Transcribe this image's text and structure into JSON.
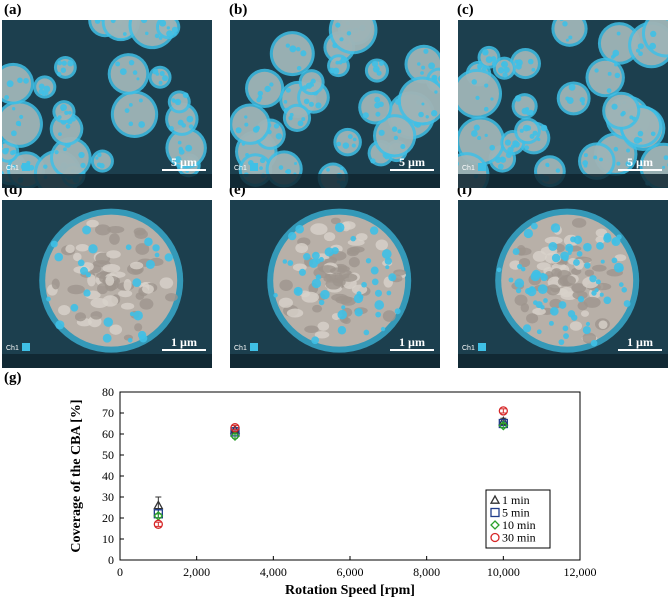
{
  "panels": {
    "a": {
      "label": "(a)",
      "scale": "5 µm",
      "ch": "Ch1"
    },
    "b": {
      "label": "(b)",
      "scale": "5 µm",
      "ch": "Ch1"
    },
    "c": {
      "label": "(c)",
      "scale": "5 µm",
      "ch": "Ch1"
    },
    "d": {
      "label": "(d)",
      "scale": "1 µm",
      "ch": "Ch1"
    },
    "e": {
      "label": "(e)",
      "scale": "1 µm",
      "ch": "Ch1"
    },
    "f": {
      "label": "(f)",
      "scale": "1 µm",
      "ch": "Ch1"
    },
    "g": {
      "label": "(g)"
    }
  },
  "colors": {
    "background_dark": "#1c3f4e",
    "cba_cyan": "#3fc0e6",
    "particle_gray": "#b8b0a8"
  },
  "chart_data": {
    "type": "scatter",
    "xlabel": "Rotation Speed [rpm]",
    "ylabel": "Coverage of the CBA [%]",
    "xlim": [
      0,
      12000
    ],
    "ylim": [
      0,
      80
    ],
    "xticks": [
      "0",
      "2,000",
      "4,000",
      "6,000",
      "8,000",
      "10,000",
      "12,000"
    ],
    "yticks": [
      "0",
      "10",
      "20",
      "30",
      "40",
      "50",
      "60",
      "70",
      "80"
    ],
    "grid": false,
    "legend_position": "bottom-right",
    "series": [
      {
        "name": "1 min",
        "marker": "triangle",
        "color": "#333333",
        "x": [
          1000,
          3000,
          10000
        ],
        "y": [
          26,
          62,
          66
        ],
        "err": [
          4,
          1,
          1.5
        ]
      },
      {
        "name": "5 min",
        "marker": "square",
        "color": "#1f3c8a",
        "x": [
          1000,
          3000,
          10000
        ],
        "y": [
          22,
          61,
          65
        ],
        "err": [
          2,
          1,
          1
        ]
      },
      {
        "name": "10 min",
        "marker": "diamond",
        "color": "#2ca02c",
        "x": [
          1000,
          3000,
          10000
        ],
        "y": [
          21,
          59,
          64
        ],
        "err": [
          1,
          1,
          1
        ]
      },
      {
        "name": "30 min",
        "marker": "circle",
        "color": "#d62728",
        "x": [
          1000,
          3000,
          10000
        ],
        "y": [
          17,
          63,
          71
        ],
        "err": [
          1,
          1,
          1
        ]
      }
    ]
  }
}
